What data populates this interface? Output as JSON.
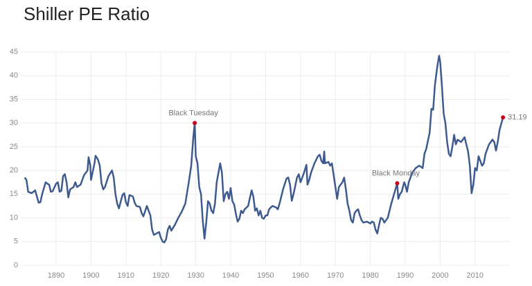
{
  "chart_data": {
    "type": "line",
    "title": "Shiller PE Ratio",
    "x": [
      1881,
      1881.5,
      1882,
      1883,
      1884,
      1884.5,
      1885,
      1885.5,
      1886,
      1887,
      1887.5,
      1888,
      1888.5,
      1889,
      1890,
      1890.5,
      1891,
      1891.5,
      1892,
      1892.5,
      1893,
      1893.5,
      1894,
      1895,
      1895.5,
      1896,
      1897,
      1898,
      1899,
      1899.3,
      1899.8,
      1900,
      1901,
      1901.3,
      1902,
      1902.5,
      1903,
      1903.5,
      1904,
      1905,
      1906,
      1906.5,
      1907,
      1907.5,
      1908,
      1909,
      1909.5,
      1910,
      1910.5,
      1911,
      1912,
      1912.5,
      1913,
      1914,
      1914.5,
      1915,
      1916,
      1916.5,
      1917,
      1917.5,
      1918,
      1919,
      1919.5,
      1920,
      1920.5,
      1921,
      1921.5,
      1922,
      1922.5,
      1923,
      1924,
      1925,
      1926,
      1927,
      1928,
      1928.7,
      1929.3,
      1929.7,
      1930,
      1930.5,
      1931,
      1931.5,
      1932,
      1932.5,
      1933,
      1933.5,
      1934,
      1934.5,
      1935,
      1935.5,
      1936,
      1937,
      1937.5,
      1938,
      1938.5,
      1939,
      1939.5,
      1940,
      1940.5,
      1941,
      1941.5,
      1942,
      1942.5,
      1943,
      1943.5,
      1944,
      1945,
      1945.5,
      1946,
      1946.5,
      1947,
      1947.5,
      1948,
      1948.5,
      1949,
      1949.5,
      1950,
      1950.5,
      1951,
      1951.5,
      1952,
      1953,
      1953.5,
      1954,
      1955,
      1956,
      1956.5,
      1957,
      1957.5,
      1958,
      1959,
      1959.5,
      1960,
      1961,
      1961.7,
      1962,
      1962.5,
      1963,
      1964,
      1965,
      1965.5,
      1966,
      1966.5,
      1966.8,
      1967,
      1968,
      1968.5,
      1969,
      1969.5,
      1970,
      1970.5,
      1971,
      1972,
      1972.5,
      1973,
      1973.5,
      1974,
      1974.5,
      1975,
      1975.5,
      1976,
      1976.5,
      1977,
      1977.5,
      1978,
      1979,
      1980,
      1980.5,
      1981,
      1981.5,
      1982,
      1982.5,
      1983,
      1983.5,
      1984,
      1985,
      1986,
      1987,
      1987.7,
      1988,
      1988.5,
      1989,
      1989.7,
      1990,
      1990.5,
      1991,
      1992,
      1993,
      1994,
      1995,
      1995.5,
      1996,
      1997,
      1997.5,
      1998,
      1998.5,
      1999.2,
      1999.7,
      2000,
      2000.5,
      2001,
      2001.5,
      2002,
      2002.5,
      2003,
      2003.5,
      2004,
      2004.5,
      2005,
      2006,
      2007,
      2007.5,
      2008,
      2008.5,
      2009,
      2009.5,
      2010,
      2010.5,
      2011,
      2011.5,
      2012,
      2012.5,
      2013,
      2014,
      2015,
      2015.5,
      2016,
      2016.5,
      2017,
      2018
    ],
    "values": [
      18.5,
      18.0,
      15.5,
      15.2,
      15.8,
      14.5,
      13.2,
      13.3,
      15.0,
      17.5,
      17.2,
      17.0,
      15.5,
      15.6,
      17.2,
      17.5,
      15.5,
      15.7,
      18.8,
      19.2,
      17.5,
      14.3,
      16.0,
      16.5,
      17.5,
      16.5,
      17.0,
      19.0,
      20.0,
      22.8,
      21.0,
      18.0,
      21.5,
      23.1,
      22.3,
      21.0,
      17.3,
      16.0,
      16.5,
      18.8,
      20.0,
      18.5,
      15.0,
      13.0,
      12.0,
      14.8,
      15.2,
      13.3,
      12.5,
      14.8,
      14.5,
      13.2,
      12.5,
      12.3,
      11.0,
      10.3,
      12.5,
      11.5,
      10.5,
      7.5,
      6.4,
      6.8,
      7.0,
      5.8,
      5.0,
      4.8,
      5.5,
      7.5,
      8.3,
      7.3,
      8.5,
      10.0,
      11.3,
      13.0,
      17.5,
      21.0,
      27.0,
      30.0,
      23.0,
      21.5,
      16.5,
      15.0,
      9.5,
      5.6,
      9.0,
      13.5,
      13.0,
      11.5,
      11.0,
      13.0,
      17.5,
      21.5,
      19.5,
      13.5,
      15.0,
      15.5,
      14.0,
      16.3,
      13.5,
      12.8,
      10.8,
      9.2,
      9.8,
      11.5,
      11.0,
      11.8,
      12.5,
      14.2,
      15.8,
      14.5,
      11.5,
      12.0,
      10.5,
      11.5,
      10.0,
      9.8,
      10.5,
      10.5,
      11.8,
      12.2,
      12.5,
      12.2,
      11.8,
      13.0,
      16.0,
      18.3,
      18.5,
      17.0,
      13.6,
      15.0,
      18.5,
      19.2,
      17.5,
      19.5,
      21.2,
      17.0,
      18.0,
      19.5,
      21.5,
      23.0,
      23.3,
      22.0,
      21.5,
      24.0,
      21.5,
      21.8,
      21.0,
      21.5,
      19.0,
      16.5,
      14.0,
      16.5,
      17.5,
      18.5,
      16.0,
      13.0,
      11.5,
      9.5,
      9.0,
      11.0,
      11.5,
      11.8,
      10.5,
      9.5,
      9.0,
      9.2,
      8.8,
      9.2,
      9.0,
      7.5,
      6.7,
      8.5,
      10.0,
      9.8,
      9.0,
      10.0,
      13.0,
      15.5,
      17.3,
      14.0,
      15.0,
      15.5,
      17.5,
      17.0,
      15.5,
      17.5,
      19.5,
      20.5,
      21.0,
      20.5,
      23.5,
      24.5,
      28.0,
      33.0,
      32.8,
      38.0,
      42.0,
      44.2,
      43.0,
      38.0,
      32.0,
      30.0,
      26.0,
      23.5,
      23.0,
      25.0,
      27.5,
      25.5,
      26.5,
      26.0,
      27.0,
      25.5,
      24.0,
      21.0,
      15.2,
      17.0,
      20.5,
      20.0,
      23.0,
      22.0,
      21.0,
      21.5,
      23.5,
      25.5,
      26.5,
      26.0,
      24.2,
      26.0,
      28.5,
      31.19
    ],
    "color": "#3d5a8f",
    "annotations": [
      {
        "text": "Black Tuesday",
        "x": 1929.7,
        "y": 30.0
      },
      {
        "text": "Black Monday",
        "x": 1987.7,
        "y": 17.3
      }
    ],
    "marker_color": "#d0021b",
    "xlim": [
      1880,
      2020
    ],
    "xticks": [
      1890,
      1900,
      1910,
      1920,
      1930,
      1940,
      1950,
      1960,
      1970,
      1980,
      1990,
      2000,
      2010
    ],
    "ylim": [
      0,
      45
    ],
    "yticks": [
      0,
      5,
      10,
      15,
      20,
      25,
      30,
      35,
      40,
      45
    ],
    "grid": true
  }
}
